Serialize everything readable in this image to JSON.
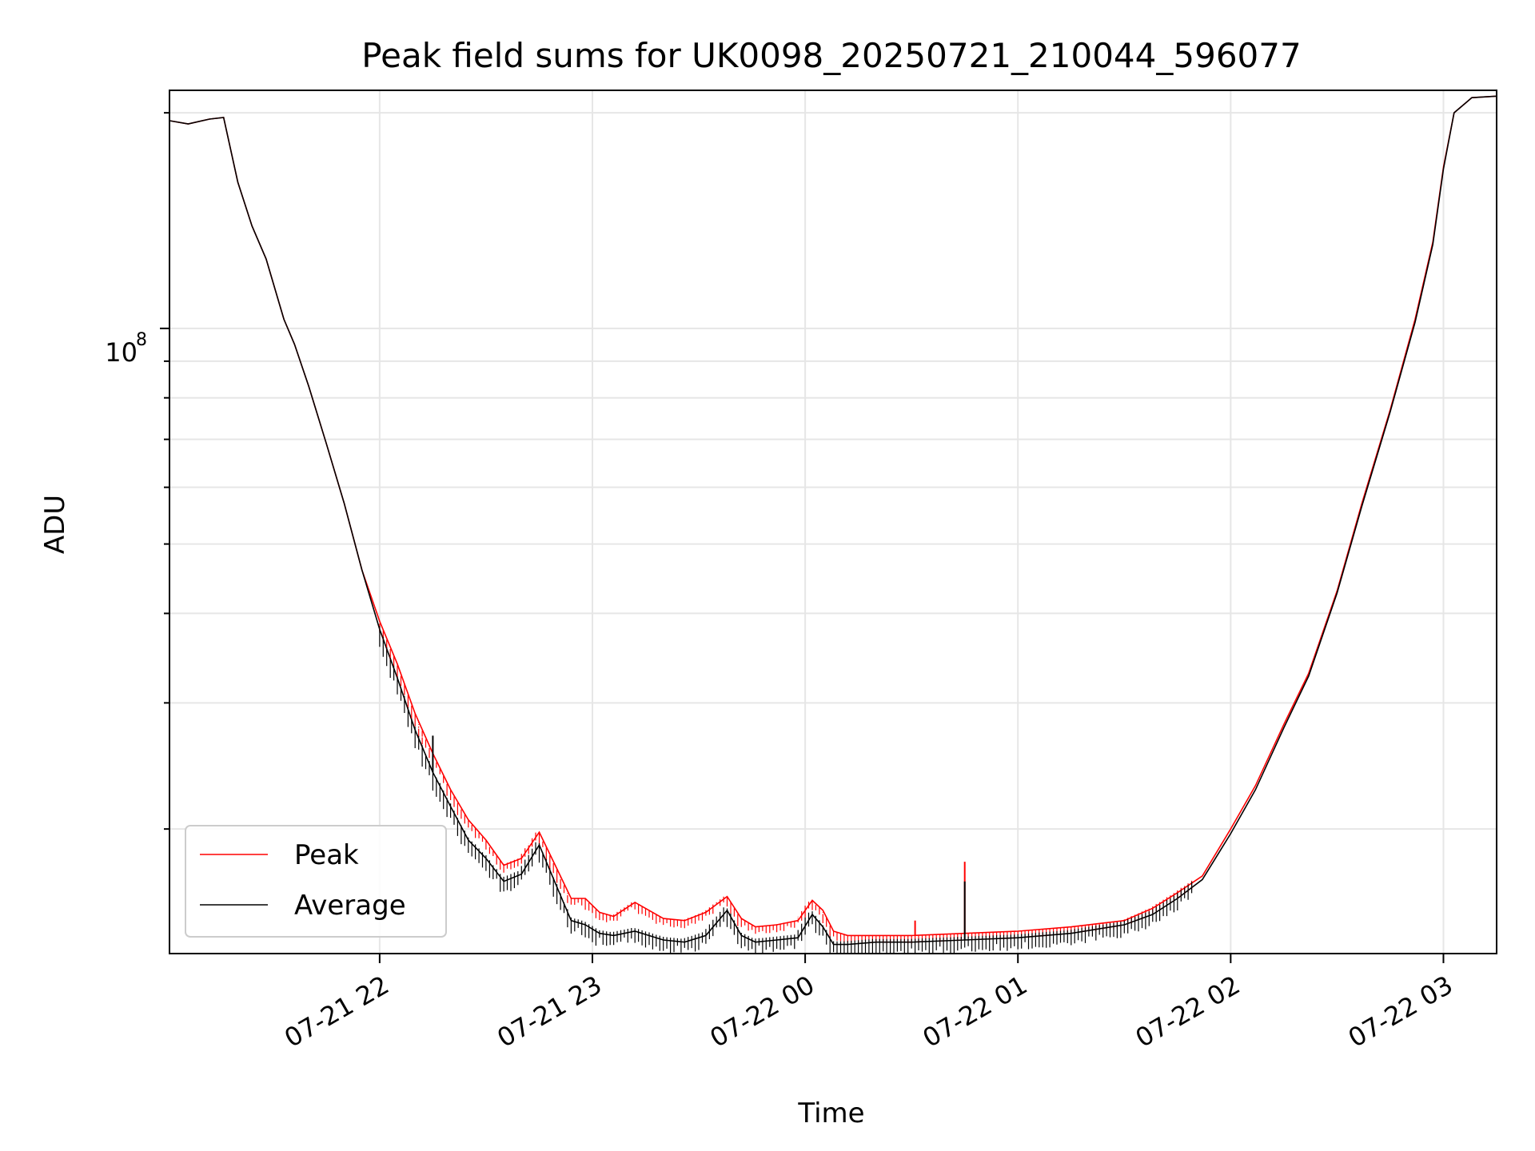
{
  "chart_data": {
    "type": "line",
    "title": "Peak field sums for UK0098_20250721_210044_596077",
    "xlabel": "Time",
    "ylabel": "ADU",
    "y_scale": "log",
    "grid": true,
    "legend_position": "bottom-left",
    "x_tick_labels": [
      "07-21 22",
      "07-21 23",
      "07-22 00",
      "07-22 01",
      "07-22 02",
      "07-22 03"
    ],
    "x_tick_times": [
      "2025-07-21 22:00",
      "2025-07-21 23:00",
      "2025-07-22 00:00",
      "2025-07-22 01:00",
      "2025-07-22 02:00",
      "2025-07-22 03:00"
    ],
    "xlim": [
      "2025-07-21 21:00:44",
      "2025-07-22 03:15"
    ],
    "y_tick_label": {
      "base": "10",
      "exponent": "8",
      "value": 100000000
    },
    "ylim": [
      13400000,
      215000000
    ],
    "series": [
      {
        "name": "Peak",
        "color": "#ff0000",
        "x": [
          "2025-07-21 21:00:44",
          "2025-07-21 21:06",
          "2025-07-21 21:12",
          "2025-07-21 21:16",
          "2025-07-21 21:20",
          "2025-07-21 21:24",
          "2025-07-21 21:28",
          "2025-07-21 21:33",
          "2025-07-21 21:36",
          "2025-07-21 21:40",
          "2025-07-21 21:45",
          "2025-07-21 21:50",
          "2025-07-21 21:55",
          "2025-07-21 22:00",
          "2025-07-21 22:05",
          "2025-07-21 22:10",
          "2025-07-21 22:15",
          "2025-07-21 22:20",
          "2025-07-21 22:25",
          "2025-07-21 22:30",
          "2025-07-21 22:35",
          "2025-07-21 22:40",
          "2025-07-21 22:45",
          "2025-07-21 22:50",
          "2025-07-21 22:54",
          "2025-07-21 22:58",
          "2025-07-21 23:02",
          "2025-07-21 23:06",
          "2025-07-21 23:12",
          "2025-07-21 23:20",
          "2025-07-21 23:26",
          "2025-07-21 23:32",
          "2025-07-21 23:38",
          "2025-07-21 23:42",
          "2025-07-21 23:46",
          "2025-07-21 23:52",
          "2025-07-21 23:58",
          "2025-07-22 00:02",
          "2025-07-22 00:05",
          "2025-07-22 00:08",
          "2025-07-22 00:12",
          "2025-07-22 00:20",
          "2025-07-22 00:30",
          "2025-07-22 00:45",
          "2025-07-22 01:00",
          "2025-07-22 01:15",
          "2025-07-22 01:30",
          "2025-07-22 01:38",
          "2025-07-22 01:45",
          "2025-07-22 01:52",
          "2025-07-22 02:00",
          "2025-07-22 02:07",
          "2025-07-22 02:15",
          "2025-07-22 02:22",
          "2025-07-22 02:30",
          "2025-07-22 02:37",
          "2025-07-22 02:45",
          "2025-07-22 02:52",
          "2025-07-22 02:57",
          "2025-07-22 03:00",
          "2025-07-22 03:03",
          "2025-07-22 03:08",
          "2025-07-22 03:15"
        ],
        "values": [
          195000000,
          193000000,
          196000000,
          197000000,
          160000000,
          139000000,
          125000000,
          103000000,
          95000000,
          83000000,
          69000000,
          57000000,
          46000000,
          39000000,
          34000000,
          29000000,
          25500000,
          22700000,
          20600000,
          19300000,
          17800000,
          18200000,
          19800000,
          17600000,
          16000000,
          16000000,
          15300000,
          15100000,
          15800000,
          15000000,
          14900000,
          15300000,
          16100000,
          15000000,
          14600000,
          14700000,
          14900000,
          15900000,
          15400000,
          14400000,
          14200000,
          14200000,
          14200000,
          14300000,
          14400000,
          14600000,
          14900000,
          15500000,
          16300000,
          17200000,
          20000000,
          23000000,
          28000000,
          33000000,
          43000000,
          57000000,
          77000000,
          103000000,
          132000000,
          168000000,
          200000000,
          210000000,
          211000000
        ]
      },
      {
        "name": "Average",
        "color": "#000000",
        "x": [
          "2025-07-21 21:00:44",
          "2025-07-21 21:06",
          "2025-07-21 21:12",
          "2025-07-21 21:16",
          "2025-07-21 21:20",
          "2025-07-21 21:24",
          "2025-07-21 21:28",
          "2025-07-21 21:33",
          "2025-07-21 21:36",
          "2025-07-21 21:40",
          "2025-07-21 21:45",
          "2025-07-21 21:50",
          "2025-07-21 21:55",
          "2025-07-21 22:00",
          "2025-07-21 22:05",
          "2025-07-21 22:10",
          "2025-07-21 22:15",
          "2025-07-21 22:20",
          "2025-07-21 22:25",
          "2025-07-21 22:30",
          "2025-07-21 22:35",
          "2025-07-21 22:40",
          "2025-07-21 22:45",
          "2025-07-21 22:50",
          "2025-07-21 22:54",
          "2025-07-21 22:58",
          "2025-07-21 23:02",
          "2025-07-21 23:06",
          "2025-07-21 23:12",
          "2025-07-21 23:20",
          "2025-07-21 23:26",
          "2025-07-21 23:32",
          "2025-07-21 23:38",
          "2025-07-21 23:42",
          "2025-07-21 23:46",
          "2025-07-21 23:52",
          "2025-07-21 23:58",
          "2025-07-22 00:02",
          "2025-07-22 00:05",
          "2025-07-22 00:08",
          "2025-07-22 00:12",
          "2025-07-22 00:20",
          "2025-07-22 00:30",
          "2025-07-22 00:45",
          "2025-07-22 01:00",
          "2025-07-22 01:15",
          "2025-07-22 01:30",
          "2025-07-22 01:38",
          "2025-07-22 01:45",
          "2025-07-22 01:52",
          "2025-07-22 02:00",
          "2025-07-22 02:07",
          "2025-07-22 02:15",
          "2025-07-22 02:22",
          "2025-07-22 02:30",
          "2025-07-22 02:37",
          "2025-07-22 02:45",
          "2025-07-22 02:52",
          "2025-07-22 02:57",
          "2025-07-22 03:00",
          "2025-07-22 03:03",
          "2025-07-22 03:08",
          "2025-07-22 03:15"
        ],
        "values": [
          195000000,
          193000000,
          196000000,
          197000000,
          160000000,
          139000000,
          125000000,
          103000000,
          95000000,
          83000000,
          69000000,
          57000000,
          46000000,
          38000000,
          32500000,
          27500000,
          24000000,
          21500000,
          19300000,
          18200000,
          16900000,
          17300000,
          19000000,
          16600000,
          14900000,
          14700000,
          14300000,
          14200000,
          14400000,
          14000000,
          13900000,
          14200000,
          15400000,
          14200000,
          13900000,
          14000000,
          14100000,
          15200000,
          14600000,
          13800000,
          13800000,
          13900000,
          13900000,
          14000000,
          14100000,
          14300000,
          14700000,
          15200000,
          16000000,
          17000000,
          19700000,
          22700000,
          27700000,
          32700000,
          42700000,
          56500000,
          76500000,
          102000000,
          131000000,
          167000000,
          200000000,
          210000000,
          211000000
        ]
      }
    ],
    "spikes": [
      {
        "series": "Peak",
        "x": "2025-07-22 00:45",
        "value": 18000000,
        "base": 14300000
      },
      {
        "series": "Peak",
        "x": "2025-07-22 00:31",
        "value": 14900000,
        "base": 14200000
      },
      {
        "series": "Average",
        "x": "2025-07-22 00:45",
        "value": 16900000,
        "base": 14000000
      },
      {
        "series": "Average",
        "x": "2025-07-21 22:15",
        "value": 27000000,
        "base": 24000000
      }
    ]
  }
}
